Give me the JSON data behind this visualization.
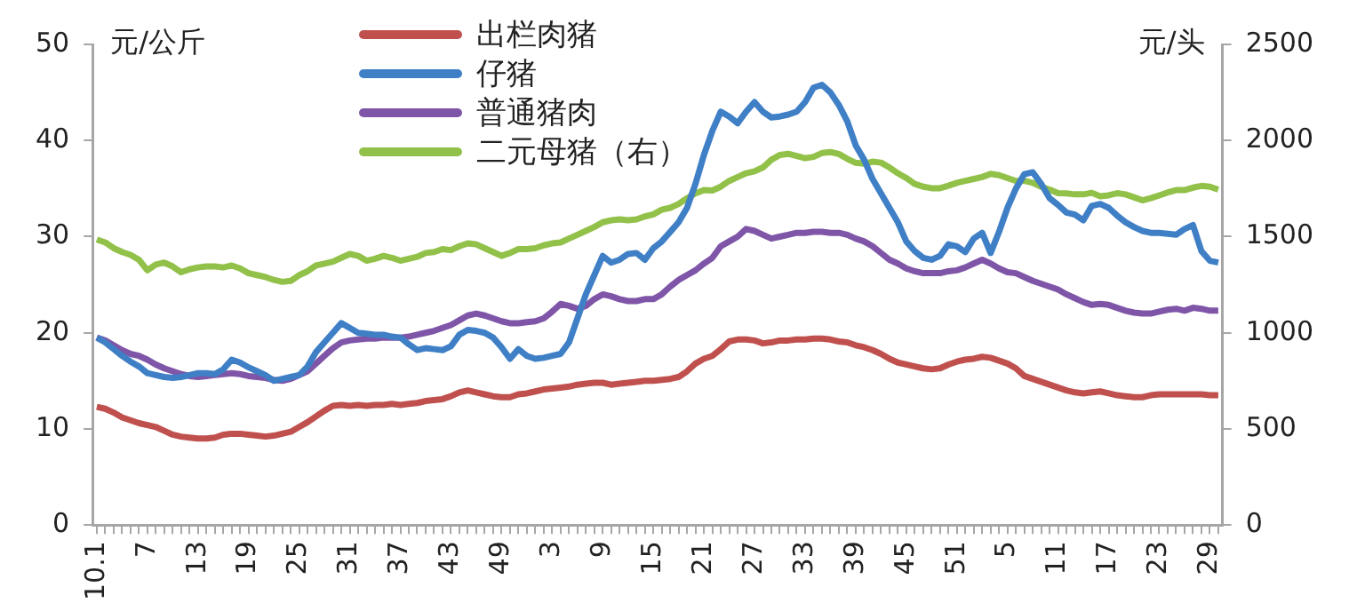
{
  "chart_data": {
    "type": "line",
    "ylabel": "元/公斤",
    "y2label": "元/头",
    "legend": "top left",
    "marker": "none",
    "categories": [
      "10.1",
      null,
      null,
      null,
      null,
      null,
      "7",
      null,
      null,
      null,
      null,
      null,
      "13",
      null,
      null,
      null,
      null,
      null,
      "19",
      null,
      null,
      null,
      null,
      null,
      "25",
      null,
      null,
      null,
      null,
      null,
      "31",
      null,
      null,
      null,
      null,
      null,
      "37",
      null,
      null,
      null,
      null,
      null,
      "43",
      null,
      null,
      null,
      null,
      null,
      "49",
      null,
      null,
      null,
      null,
      null,
      "3",
      null,
      null,
      null,
      null,
      null,
      "9",
      null,
      null,
      null,
      null,
      null,
      "15",
      null,
      null,
      null,
      null,
      null,
      "21",
      null,
      null,
      null,
      null,
      null,
      "27",
      null,
      null,
      null,
      null,
      null,
      "33",
      null,
      null,
      null,
      null,
      null,
      "39",
      null,
      null,
      null,
      null,
      null,
      "45",
      null,
      null,
      null,
      null,
      null,
      "51",
      null,
      null,
      null,
      null,
      null,
      "5",
      null,
      null,
      null,
      null,
      null,
      "11",
      null,
      null,
      null,
      null,
      null,
      "17",
      null,
      null,
      null,
      null,
      null,
      "23",
      null,
      null,
      null,
      null,
      null,
      "29",
      null
    ],
    "ylim": [
      0,
      50
    ],
    "yticks": [
      0,
      10,
      20,
      30,
      40,
      50
    ],
    "y2lim": [
      0,
      2500
    ],
    "y2ticks": [
      0,
      500,
      1000,
      1500,
      2000,
      2500
    ],
    "series": [
      {
        "name": "出栏肉猪",
        "color": "#c0504d",
        "values": [
          12.3,
          12.1,
          11.7,
          11.2,
          10.9,
          10.6,
          10.4,
          10.2,
          9.8,
          9.4,
          9.2,
          9.1,
          9.0,
          9.0,
          9.1,
          9.4,
          9.5,
          9.5,
          9.4,
          9.3,
          9.2,
          9.3,
          9.5,
          9.7,
          10.2,
          10.7,
          11.3,
          11.9,
          12.4,
          12.5,
          12.4,
          12.5,
          12.4,
          12.5,
          12.5,
          12.6,
          12.5,
          12.6,
          12.7,
          12.9,
          13.0,
          13.1,
          13.4,
          13.8,
          14.0,
          13.8,
          13.6,
          13.4,
          13.3,
          13.3,
          13.6,
          13.7,
          13.9,
          14.1,
          14.2,
          14.3,
          14.4,
          14.6,
          14.7,
          14.8,
          14.8,
          14.6,
          14.7,
          14.8,
          14.9,
          15.0,
          15.0,
          15.1,
          15.2,
          15.4,
          16.0,
          16.8,
          17.3,
          17.6,
          18.3,
          19.1,
          19.3,
          19.3,
          19.2,
          18.9,
          19.0,
          19.2,
          19.2,
          19.3,
          19.3,
          19.4,
          19.4,
          19.3,
          19.1,
          19.0,
          18.7,
          18.5,
          18.2,
          17.8,
          17.3,
          16.9,
          16.7,
          16.5,
          16.3,
          16.2,
          16.3,
          16.7,
          17.0,
          17.2,
          17.3,
          17.5,
          17.4,
          17.1,
          16.8,
          16.3,
          15.5,
          15.2,
          14.9,
          14.6,
          14.3,
          14.0,
          13.8,
          13.7,
          13.8,
          13.9,
          13.7,
          13.5,
          13.4,
          13.3,
          13.3,
          13.5,
          13.6,
          13.6,
          13.6,
          13.6,
          13.6,
          13.6,
          13.5,
          13.5
        ]
      },
      {
        "name": "仔猪",
        "color": "#3f7fc6",
        "values": [
          19.5,
          19.0,
          18.3,
          17.6,
          17.0,
          16.5,
          15.8,
          15.6,
          15.4,
          15.3,
          15.4,
          15.6,
          15.8,
          15.8,
          15.7,
          16.2,
          17.2,
          16.9,
          16.4,
          16.0,
          15.6,
          15.0,
          15.2,
          15.4,
          15.6,
          16.5,
          18.0,
          19.0,
          20.0,
          21.0,
          20.5,
          20.0,
          19.9,
          19.8,
          19.8,
          19.6,
          19.5,
          18.8,
          18.2,
          18.4,
          18.3,
          18.2,
          18.6,
          19.8,
          20.3,
          20.2,
          20.0,
          19.5,
          18.5,
          17.3,
          18.3,
          17.6,
          17.3,
          17.4,
          17.6,
          17.8,
          19.0,
          21.5,
          24.0,
          26.0,
          28.0,
          27.3,
          27.6,
          28.2,
          28.3,
          27.6,
          28.8,
          29.5,
          30.5,
          31.5,
          33.0,
          35.5,
          38.5,
          41.0,
          43.0,
          42.5,
          41.8,
          43.0,
          44.0,
          43.0,
          42.4,
          42.5,
          42.7,
          43.0,
          44.0,
          45.5,
          45.8,
          45.0,
          43.7,
          42.0,
          39.5,
          38.0,
          36.0,
          34.5,
          33.0,
          31.5,
          29.5,
          28.5,
          27.8,
          27.6,
          28.0,
          29.2,
          29.0,
          28.4,
          29.8,
          30.4,
          28.3,
          30.5,
          33.0,
          35.0,
          36.5,
          36.7,
          35.5,
          34.0,
          33.3,
          32.5,
          32.3,
          31.7,
          33.2,
          33.4,
          33.0,
          32.2,
          31.5,
          31.0,
          30.6,
          30.4,
          30.4,
          30.3,
          30.2,
          30.8,
          31.2,
          28.5,
          27.5,
          27.3
        ]
      },
      {
        "name": "普通猪肉",
        "color": "#7f55a8",
        "values": [
          19.5,
          19.2,
          18.7,
          18.2,
          17.8,
          17.6,
          17.2,
          16.7,
          16.3,
          16.0,
          15.7,
          15.5,
          15.4,
          15.5,
          15.6,
          15.7,
          15.8,
          15.7,
          15.5,
          15.4,
          15.3,
          15.1,
          15.0,
          15.2,
          15.6,
          16.0,
          16.8,
          17.6,
          18.4,
          19.0,
          19.2,
          19.3,
          19.4,
          19.4,
          19.5,
          19.5,
          19.5,
          19.6,
          19.8,
          20.0,
          20.2,
          20.5,
          20.8,
          21.3,
          21.8,
          22.0,
          21.8,
          21.5,
          21.2,
          21.0,
          21.0,
          21.1,
          21.2,
          21.5,
          22.2,
          23.0,
          22.8,
          22.5,
          22.8,
          23.5,
          24.0,
          23.8,
          23.5,
          23.3,
          23.3,
          23.5,
          23.5,
          24.0,
          24.8,
          25.5,
          26.0,
          26.5,
          27.2,
          27.8,
          29.0,
          29.5,
          30.0,
          30.8,
          30.6,
          30.2,
          29.8,
          30.0,
          30.2,
          30.4,
          30.4,
          30.5,
          30.5,
          30.4,
          30.4,
          30.2,
          29.8,
          29.5,
          29.0,
          28.3,
          27.6,
          27.2,
          26.7,
          26.4,
          26.2,
          26.2,
          26.2,
          26.4,
          26.5,
          26.8,
          27.2,
          27.6,
          27.2,
          26.7,
          26.3,
          26.2,
          25.8,
          25.4,
          25.1,
          24.8,
          24.5,
          24.0,
          23.6,
          23.2,
          22.9,
          23.0,
          22.9,
          22.6,
          22.3,
          22.1,
          22.0,
          22.0,
          22.2,
          22.4,
          22.5,
          22.3,
          22.6,
          22.5,
          22.3,
          22.3
        ]
      },
      {
        "name": "二元母猪（右）",
        "color": "#92c14a",
        "axis": "y2",
        "values": [
          1485,
          1470,
          1440,
          1420,
          1405,
          1380,
          1325,
          1355,
          1365,
          1345,
          1315,
          1330,
          1340,
          1345,
          1345,
          1340,
          1350,
          1335,
          1310,
          1300,
          1290,
          1275,
          1265,
          1270,
          1300,
          1320,
          1350,
          1360,
          1370,
          1390,
          1410,
          1400,
          1375,
          1385,
          1400,
          1390,
          1375,
          1385,
          1395,
          1415,
          1420,
          1435,
          1430,
          1450,
          1465,
          1460,
          1440,
          1420,
          1400,
          1415,
          1435,
          1435,
          1440,
          1455,
          1465,
          1470,
          1490,
          1510,
          1530,
          1550,
          1575,
          1585,
          1590,
          1585,
          1590,
          1605,
          1616,
          1640,
          1650,
          1670,
          1700,
          1725,
          1742,
          1740,
          1760,
          1790,
          1810,
          1830,
          1840,
          1860,
          1900,
          1925,
          1931,
          1920,
          1908,
          1915,
          1935,
          1940,
          1930,
          1905,
          1884,
          1880,
          1890,
          1885,
          1860,
          1830,
          1805,
          1774,
          1760,
          1752,
          1752,
          1765,
          1780,
          1790,
          1800,
          1810,
          1827,
          1820,
          1805,
          1790,
          1790,
          1780,
          1760,
          1745,
          1726,
          1725,
          1720,
          1720,
          1728,
          1710,
          1715,
          1726,
          1720,
          1705,
          1689,
          1700,
          1715,
          1730,
          1742,
          1742,
          1755,
          1764,
          1760,
          1745
        ]
      }
    ]
  }
}
